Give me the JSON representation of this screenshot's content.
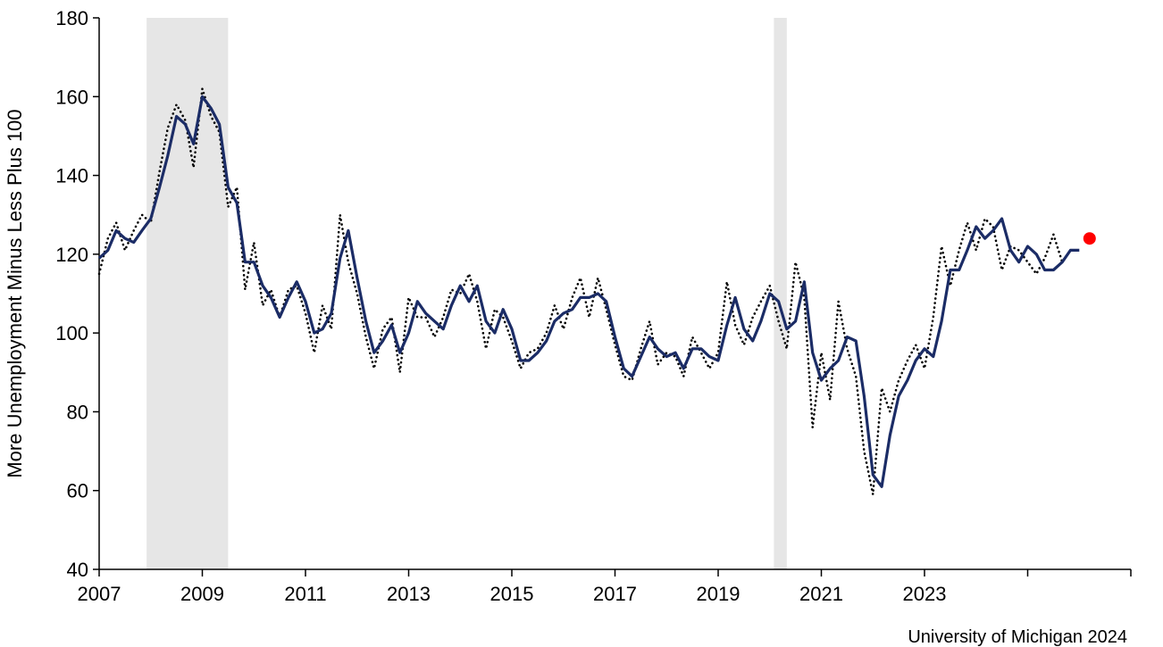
{
  "chart_data": {
    "type": "line",
    "ylabel": "More Unemployment  Minus Less Plus 100",
    "credit": "University of Michigan 2024",
    "xlim": [
      2007,
      2025.0
    ],
    "ylim": [
      40,
      180
    ],
    "y_ticks": [
      40,
      60,
      80,
      100,
      120,
      140,
      160,
      180
    ],
    "x_ticks": [
      2007,
      2009,
      2011,
      2013,
      2015,
      2017,
      2019,
      2021,
      2023
    ],
    "grid": false,
    "legend": "none",
    "recession_bands": [
      [
        2007.92,
        2009.5
      ],
      [
        2020.08,
        2020.33
      ]
    ],
    "colors": {
      "solid": "#1b2c66",
      "dotted": "#000000",
      "band": "#e6e6e6",
      "marker": "#ff0000"
    },
    "series": [
      {
        "style": "solid",
        "points": [
          [
            2007.0,
            119
          ],
          [
            2007.17,
            121
          ],
          [
            2007.33,
            126
          ],
          [
            2007.5,
            124
          ],
          [
            2007.67,
            123
          ],
          [
            2007.83,
            126
          ],
          [
            2008.0,
            129
          ],
          [
            2008.17,
            137
          ],
          [
            2008.33,
            145
          ],
          [
            2008.5,
            155
          ],
          [
            2008.67,
            153
          ],
          [
            2008.83,
            148
          ],
          [
            2009.0,
            160
          ],
          [
            2009.17,
            157
          ],
          [
            2009.33,
            153
          ],
          [
            2009.5,
            137
          ],
          [
            2009.67,
            133
          ],
          [
            2009.83,
            118
          ],
          [
            2010.0,
            118
          ],
          [
            2010.17,
            112
          ],
          [
            2010.33,
            109
          ],
          [
            2010.5,
            104
          ],
          [
            2010.67,
            109
          ],
          [
            2010.83,
            113
          ],
          [
            2011.0,
            108
          ],
          [
            2011.17,
            100
          ],
          [
            2011.33,
            101
          ],
          [
            2011.5,
            105
          ],
          [
            2011.67,
            119
          ],
          [
            2011.83,
            126
          ],
          [
            2012.0,
            114
          ],
          [
            2012.17,
            103
          ],
          [
            2012.33,
            95
          ],
          [
            2012.5,
            98
          ],
          [
            2012.67,
            102
          ],
          [
            2012.83,
            95
          ],
          [
            2013.0,
            100
          ],
          [
            2013.17,
            108
          ],
          [
            2013.33,
            105
          ],
          [
            2013.5,
            103
          ],
          [
            2013.67,
            101
          ],
          [
            2013.83,
            107
          ],
          [
            2014.0,
            112
          ],
          [
            2014.17,
            108
          ],
          [
            2014.33,
            112
          ],
          [
            2014.5,
            103
          ],
          [
            2014.67,
            100
          ],
          [
            2014.83,
            106
          ],
          [
            2015.0,
            101
          ],
          [
            2015.17,
            93
          ],
          [
            2015.33,
            93
          ],
          [
            2015.5,
            95
          ],
          [
            2015.67,
            98
          ],
          [
            2015.83,
            103
          ],
          [
            2016.0,
            105
          ],
          [
            2016.17,
            106
          ],
          [
            2016.33,
            109
          ],
          [
            2016.5,
            109
          ],
          [
            2016.67,
            110
          ],
          [
            2016.83,
            108
          ],
          [
            2017.0,
            99
          ],
          [
            2017.17,
            91
          ],
          [
            2017.33,
            89
          ],
          [
            2017.5,
            94
          ],
          [
            2017.67,
            99
          ],
          [
            2017.83,
            96
          ],
          [
            2018.0,
            94
          ],
          [
            2018.17,
            95
          ],
          [
            2018.33,
            91
          ],
          [
            2018.5,
            96
          ],
          [
            2018.67,
            96
          ],
          [
            2018.83,
            94
          ],
          [
            2019.0,
            93
          ],
          [
            2019.17,
            102
          ],
          [
            2019.33,
            109
          ],
          [
            2019.5,
            101
          ],
          [
            2019.67,
            98
          ],
          [
            2019.83,
            103
          ],
          [
            2020.0,
            110
          ],
          [
            2020.17,
            108
          ],
          [
            2020.33,
            101
          ],
          [
            2020.5,
            103
          ],
          [
            2020.67,
            113
          ],
          [
            2020.83,
            95
          ],
          [
            2021.0,
            88
          ],
          [
            2021.17,
            91
          ],
          [
            2021.33,
            93
          ],
          [
            2021.5,
            99
          ],
          [
            2021.67,
            98
          ],
          [
            2021.83,
            84
          ],
          [
            2022.0,
            64
          ],
          [
            2022.17,
            61
          ],
          [
            2022.33,
            74
          ],
          [
            2022.5,
            84
          ],
          [
            2022.67,
            88
          ],
          [
            2022.83,
            93
          ],
          [
            2023.0,
            96
          ],
          [
            2023.17,
            94
          ],
          [
            2023.33,
            103
          ],
          [
            2023.5,
            116
          ],
          [
            2023.67,
            116
          ],
          [
            2023.83,
            121
          ],
          [
            2024.0,
            127
          ],
          [
            2024.17,
            124
          ],
          [
            2024.33,
            126
          ],
          [
            2024.5,
            129
          ],
          [
            2024.67,
            121
          ],
          [
            2024.83,
            118
          ],
          [
            2025.0,
            122
          ],
          [
            2025.17,
            120
          ],
          [
            2025.33,
            116
          ],
          [
            2025.5,
            116
          ],
          [
            2025.67,
            118
          ],
          [
            2025.83,
            121
          ],
          [
            2026.0,
            121
          ]
        ]
      },
      {
        "style": "dotted",
        "points": [
          [
            2007.0,
            115
          ],
          [
            2007.17,
            124
          ],
          [
            2007.33,
            128
          ],
          [
            2007.5,
            121
          ],
          [
            2007.67,
            126
          ],
          [
            2007.83,
            130
          ],
          [
            2008.0,
            128
          ],
          [
            2008.17,
            141
          ],
          [
            2008.33,
            152
          ],
          [
            2008.5,
            158
          ],
          [
            2008.67,
            154
          ],
          [
            2008.83,
            142
          ],
          [
            2009.0,
            162
          ],
          [
            2009.17,
            155
          ],
          [
            2009.33,
            151
          ],
          [
            2009.5,
            132
          ],
          [
            2009.67,
            137
          ],
          [
            2009.83,
            111
          ],
          [
            2010.0,
            123
          ],
          [
            2010.17,
            107
          ],
          [
            2010.33,
            111
          ],
          [
            2010.5,
            104
          ],
          [
            2010.67,
            111
          ],
          [
            2010.83,
            112
          ],
          [
            2011.0,
            105
          ],
          [
            2011.17,
            95
          ],
          [
            2011.33,
            107
          ],
          [
            2011.5,
            101
          ],
          [
            2011.67,
            130
          ],
          [
            2011.83,
            118
          ],
          [
            2012.0,
            110
          ],
          [
            2012.17,
            99
          ],
          [
            2012.33,
            91
          ],
          [
            2012.5,
            101
          ],
          [
            2012.67,
            104
          ],
          [
            2012.83,
            90
          ],
          [
            2013.0,
            109
          ],
          [
            2013.17,
            104
          ],
          [
            2013.33,
            104
          ],
          [
            2013.5,
            99
          ],
          [
            2013.67,
            104
          ],
          [
            2013.83,
            111
          ],
          [
            2014.0,
            110
          ],
          [
            2014.17,
            115
          ],
          [
            2014.33,
            108
          ],
          [
            2014.5,
            96
          ],
          [
            2014.67,
            106
          ],
          [
            2014.83,
            104
          ],
          [
            2015.0,
            98
          ],
          [
            2015.17,
            91
          ],
          [
            2015.33,
            95
          ],
          [
            2015.5,
            96
          ],
          [
            2015.67,
            100
          ],
          [
            2015.83,
            107
          ],
          [
            2016.0,
            101
          ],
          [
            2016.17,
            109
          ],
          [
            2016.33,
            114
          ],
          [
            2016.5,
            104
          ],
          [
            2016.67,
            114
          ],
          [
            2016.83,
            106
          ],
          [
            2017.0,
            97
          ],
          [
            2017.17,
            89
          ],
          [
            2017.33,
            88
          ],
          [
            2017.5,
            96
          ],
          [
            2017.67,
            103
          ],
          [
            2017.83,
            92
          ],
          [
            2018.0,
            95
          ],
          [
            2018.17,
            94
          ],
          [
            2018.33,
            89
          ],
          [
            2018.5,
            99
          ],
          [
            2018.67,
            95
          ],
          [
            2018.83,
            91
          ],
          [
            2019.0,
            95
          ],
          [
            2019.17,
            113
          ],
          [
            2019.33,
            102
          ],
          [
            2019.5,
            97
          ],
          [
            2019.67,
            104
          ],
          [
            2019.83,
            108
          ],
          [
            2020.0,
            112
          ],
          [
            2020.17,
            103
          ],
          [
            2020.33,
            96
          ],
          [
            2020.5,
            118
          ],
          [
            2020.67,
            109
          ],
          [
            2020.83,
            76
          ],
          [
            2021.0,
            95
          ],
          [
            2021.17,
            83
          ],
          [
            2021.33,
            108
          ],
          [
            2021.5,
            96
          ],
          [
            2021.67,
            89
          ],
          [
            2021.83,
            70
          ],
          [
            2022.0,
            59
          ],
          [
            2022.17,
            86
          ],
          [
            2022.33,
            80
          ],
          [
            2022.5,
            88
          ],
          [
            2022.67,
            93
          ],
          [
            2022.83,
            97
          ],
          [
            2023.0,
            91
          ],
          [
            2023.17,
            104
          ],
          [
            2023.33,
            122
          ],
          [
            2023.5,
            112
          ],
          [
            2023.67,
            121
          ],
          [
            2023.83,
            128
          ],
          [
            2024.0,
            121
          ],
          [
            2024.17,
            129
          ],
          [
            2024.33,
            127
          ],
          [
            2024.5,
            116
          ],
          [
            2024.67,
            122
          ],
          [
            2024.83,
            121
          ],
          [
            2025.0,
            118
          ],
          [
            2025.17,
            115
          ],
          [
            2025.33,
            119
          ],
          [
            2025.5,
            125
          ],
          [
            2025.67,
            118
          ],
          [
            2025.83,
            121
          ],
          [
            2026.0,
            121
          ]
        ]
      }
    ],
    "marker": {
      "x": 2026.2,
      "y": 124
    }
  }
}
